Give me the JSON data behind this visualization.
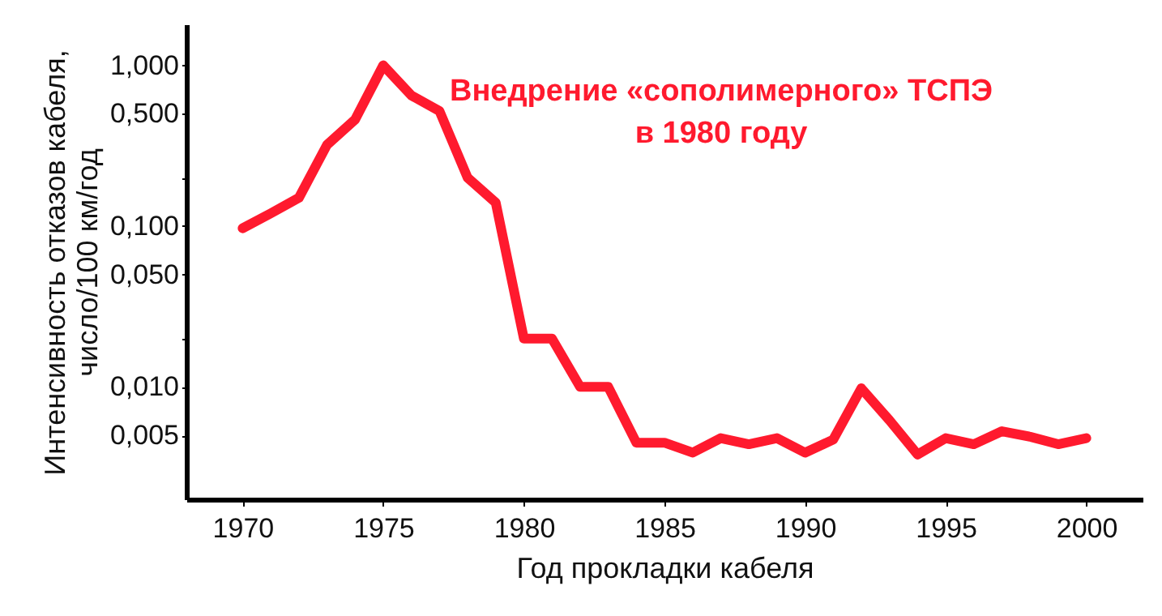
{
  "chart_data": {
    "type": "line",
    "xlabel": "Год прокладки кабеля",
    "ylabel": "Интенсивность отказов кабеля,\nчисло/100 км/год",
    "annotations": [
      "Внедрение «сополимерного» ТСПЭ\nв 1980 году"
    ],
    "x": [
      1970,
      1971,
      1972,
      1973,
      1974,
      1975,
      1976,
      1977,
      1978,
      1979,
      1980,
      1981,
      1982,
      1983,
      1984,
      1985,
      1986,
      1987,
      1988,
      1989,
      1990,
      1991,
      1992,
      1993,
      1994,
      1995,
      1996,
      1997,
      1998,
      1999,
      2000
    ],
    "series": [
      {
        "color": "#ff1a2e",
        "values": [
          0.097,
          0.12,
          0.15,
          0.32,
          0.46,
          1.0,
          0.65,
          0.52,
          0.2,
          0.14,
          0.02,
          0.02,
          0.01,
          0.01,
          0.0045,
          0.0045,
          0.0039,
          0.0048,
          0.0044,
          0.0048,
          0.0039,
          0.0047,
          0.0098,
          0.0062,
          0.0038,
          0.0048,
          0.0044,
          0.0053,
          0.0049,
          0.0044,
          0.0048
        ]
      }
    ],
    "xlim": [
      1968,
      2002
    ],
    "xticks": [
      1970,
      1975,
      1980,
      1985,
      1990,
      1995,
      2000
    ],
    "ylim": [
      0.002,
      1.8
    ],
    "yticks": [
      {
        "value": 1,
        "label": "1,000"
      },
      {
        "value": 0.5,
        "label": "0,500"
      },
      {
        "value": 0.2,
        "label": null
      },
      {
        "value": 0.1,
        "label": "0,100"
      },
      {
        "value": 0.05,
        "label": "0,050"
      },
      {
        "value": 0.02,
        "label": null
      },
      {
        "value": 0.01,
        "label": "0,010"
      },
      {
        "value": 0.005,
        "label": "0,005"
      }
    ],
    "log": true,
    "grid": false,
    "marker": "none",
    "line_style": "solid"
  }
}
